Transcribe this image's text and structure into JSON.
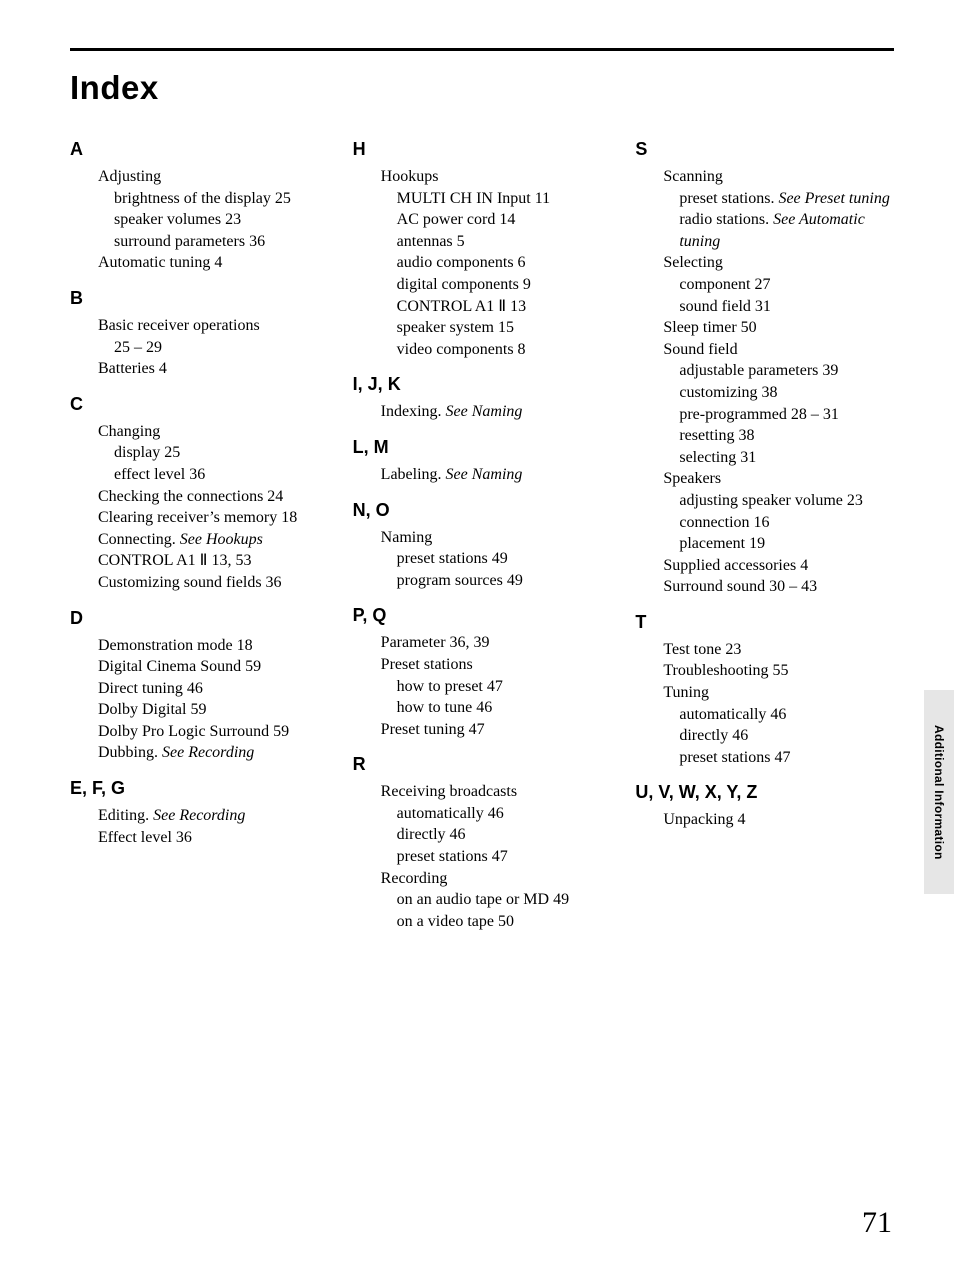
{
  "title": "Index",
  "page_number": "71",
  "side_tab": "Additional Information",
  "colors": {
    "background": "#ffffff",
    "text": "#000000",
    "tab_bg": "#e6e6e6"
  },
  "typography": {
    "title_fontsize": 33,
    "letter_fontsize": 18,
    "body_fontsize": 16,
    "pagenum_fontsize": 30
  },
  "columns": [
    [
      {
        "letter": "A",
        "items": [
          {
            "t": "Adjusting",
            "l": 1
          },
          {
            "t": "brightness of the display   25",
            "l": 2
          },
          {
            "t": "speaker volumes   23",
            "l": 2
          },
          {
            "t": "surround parameters   36",
            "l": 2
          },
          {
            "t": "Automatic tuning   4",
            "l": 1
          }
        ]
      },
      {
        "letter": "B",
        "items": [
          {
            "t": "Basic receiver operations",
            "l": 1
          },
          {
            "t": "25 – 29",
            "l": 2
          },
          {
            "t": "Batteries   4",
            "l": 1
          }
        ]
      },
      {
        "letter": "C",
        "items": [
          {
            "t": "Changing",
            "l": 1
          },
          {
            "t": "display   25",
            "l": 2
          },
          {
            "t": "effect level   36",
            "l": 2
          },
          {
            "t": "Checking the connections   24",
            "l": 1
          },
          {
            "t": "Clearing receiver’s memory   18",
            "l": 1
          },
          {
            "pre": "Connecting.  ",
            "see": "See Hookups",
            "l": 1
          },
          {
            "t": "CONTROL A1 Ⅱ   13, 53",
            "l": 1
          },
          {
            "t": "Customizing sound fields   36",
            "l": 1
          }
        ]
      },
      {
        "letter": "D",
        "items": [
          {
            "t": "Demonstration mode   18",
            "l": 1
          },
          {
            "t": "Digital Cinema Sound   59",
            "l": 1
          },
          {
            "t": "Direct tuning   46",
            "l": 1
          },
          {
            "t": "Dolby Digital   59",
            "l": 1
          },
          {
            "t": "Dolby Pro Logic Surround   59",
            "l": 1
          },
          {
            "pre": "Dubbing.  ",
            "see": "See Recording",
            "l": 1
          }
        ]
      },
      {
        "letter": "E, F, G",
        "items": [
          {
            "pre": "Editing.  ",
            "see": "See Recording",
            "l": 1
          },
          {
            "t": "Effect level   36",
            "l": 1
          }
        ]
      }
    ],
    [
      {
        "letter": "H",
        "items": [
          {
            "t": "Hookups",
            "l": 1
          },
          {
            "t": "MULTI CH IN Input   11",
            "l": 2
          },
          {
            "t": "AC power cord   14",
            "l": 2
          },
          {
            "t": "antennas   5",
            "l": 2
          },
          {
            "t": "audio components   6",
            "l": 2
          },
          {
            "t": "digital components   9",
            "l": 2
          },
          {
            "t": "CONTROL A1 Ⅱ   13",
            "l": 2
          },
          {
            "t": "speaker system   15",
            "l": 2
          },
          {
            "t": "video components   8",
            "l": 2
          }
        ]
      },
      {
        "letter": "I, J, K",
        "items": [
          {
            "pre": "Indexing.  ",
            "see": "See Naming",
            "l": 1
          }
        ]
      },
      {
        "letter": "L, M",
        "items": [
          {
            "pre": "Labeling.  ",
            "see": "See Naming",
            "l": 1
          }
        ]
      },
      {
        "letter": "N, O",
        "items": [
          {
            "t": "Naming",
            "l": 1
          },
          {
            "t": "preset stations   49",
            "l": 2
          },
          {
            "t": "program sources   49",
            "l": 2
          }
        ]
      },
      {
        "letter": "P, Q",
        "items": [
          {
            "t": "Parameter   36, 39",
            "l": 1
          },
          {
            "t": "Preset stations",
            "l": 1
          },
          {
            "t": "how to preset   47",
            "l": 2
          },
          {
            "t": "how to tune   46",
            "l": 2
          },
          {
            "t": "Preset tuning   47",
            "l": 1
          }
        ]
      },
      {
        "letter": "R",
        "items": [
          {
            "t": "Receiving broadcasts",
            "l": 1
          },
          {
            "t": "automatically   46",
            "l": 2
          },
          {
            "t": "directly   46",
            "l": 2
          },
          {
            "t": "preset stations   47",
            "l": 2
          },
          {
            "t": "Recording",
            "l": 1
          },
          {
            "t": "on an audio tape or MD   49",
            "l": 2
          },
          {
            "t": "on a video tape   50",
            "l": 2
          }
        ]
      }
    ],
    [
      {
        "letter": "S",
        "items": [
          {
            "t": "Scanning",
            "l": 1
          },
          {
            "pre": "preset stations.  ",
            "see": "See Preset tuning",
            "l": 2
          },
          {
            "pre": "radio stations.  ",
            "see": "See Automatic tuning",
            "l": 2
          },
          {
            "t": "Selecting",
            "l": 1
          },
          {
            "t": "component   27",
            "l": 2
          },
          {
            "t": "sound field   31",
            "l": 2
          },
          {
            "t": "Sleep timer   50",
            "l": 1
          },
          {
            "t": "Sound field",
            "l": 1
          },
          {
            "t": "adjustable parameters   39",
            "l": 2
          },
          {
            "t": "customizing   38",
            "l": 2
          },
          {
            "t": "pre-programmed   28 – 31",
            "l": 2
          },
          {
            "t": "resetting   38",
            "l": 2
          },
          {
            "t": "selecting   31",
            "l": 2
          },
          {
            "t": "Speakers",
            "l": 1
          },
          {
            "t": "adjusting speaker volume   23",
            "l": 2
          },
          {
            "t": "connection   16",
            "l": 2
          },
          {
            "t": "placement   19",
            "l": 2
          },
          {
            "t": "Supplied accessories   4",
            "l": 1
          },
          {
            "t": "Surround sound   30 – 43",
            "l": 1
          }
        ]
      },
      {
        "letter": "T",
        "items": [
          {
            "t": "Test tone   23",
            "l": 1
          },
          {
            "t": "Troubleshooting   55",
            "l": 1
          },
          {
            "t": "Tuning",
            "l": 1
          },
          {
            "t": "automatically   46",
            "l": 2
          },
          {
            "t": "directly   46",
            "l": 2
          },
          {
            "t": "preset stations   47",
            "l": 2
          }
        ]
      },
      {
        "letter": "U, V, W, X, Y, Z",
        "items": [
          {
            "t": "Unpacking   4",
            "l": 1
          }
        ]
      }
    ]
  ]
}
